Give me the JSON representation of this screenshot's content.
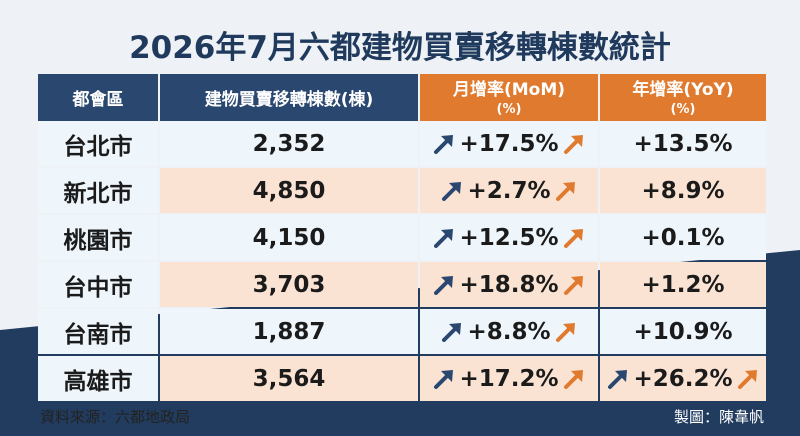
{
  "header": {
    "title": "2026年7月六都建物買賣移轉棟數統計"
  },
  "table": {
    "columns": [
      {
        "label": "都會區"
      },
      {
        "label": "建物買賣移轉棟數(棟)"
      },
      {
        "label": "月增率(MoM)",
        "unit": "(%)"
      },
      {
        "label": "年增率(YoY)",
        "unit": "(%)"
      }
    ],
    "rows": [
      [
        "台北市",
        "2,352",
        "+17.5%",
        "+13.5%"
      ],
      [
        "新北市",
        "4,850",
        "+2.7%",
        "+8.9%"
      ],
      [
        "桃園市",
        "4,150",
        "+12.5%",
        "+0.1%"
      ],
      [
        "台中市",
        "3,703",
        "+18.8%",
        "+1.2%"
      ],
      [
        "台南市",
        "1,887",
        "+8.8%",
        "+10.9%"
      ],
      [
        "高雄市",
        "3,564",
        "+17.2%",
        "+26.2%"
      ]
    ]
  },
  "footer": {
    "source": "資料來源：六都地政局",
    "credit": "製圖：陳韋帆"
  }
}
